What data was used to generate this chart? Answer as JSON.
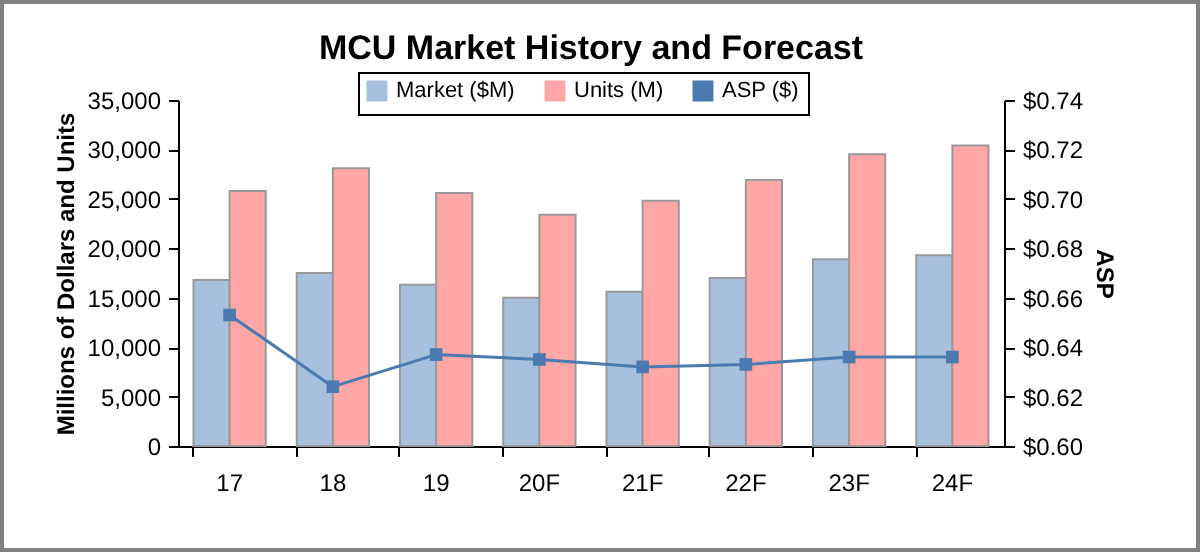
{
  "chart_data": {
    "type": "bar",
    "title": "MCU Market History and Forecast",
    "ylabel": "Millions of Dollars and Units",
    "y2label": "ASP",
    "categories": [
      "17",
      "18",
      "19",
      "20F",
      "21F",
      "22F",
      "23F",
      "24F"
    ],
    "series": [
      {
        "name": "Market ($M)",
        "color": "#a7c0de",
        "values": [
          16800,
          17500,
          16300,
          15000,
          15600,
          17000,
          18900,
          19300
        ]
      },
      {
        "name": "Units (M)",
        "color": "#ffa6a6",
        "values": [
          25800,
          28100,
          25600,
          23400,
          24800,
          26900,
          29500,
          30400
        ]
      },
      {
        "name": "ASP ($)",
        "type": "line",
        "axis": "y2",
        "color": "#4a7ab0",
        "values": [
          0.653,
          0.624,
          0.637,
          0.635,
          0.632,
          0.633,
          0.636,
          0.636
        ]
      }
    ],
    "ylim": [
      0,
      35000
    ],
    "yticks": [
      0,
      {
        "value": 5000,
        "label": "5,000"
      },
      {
        "value": 10000,
        "label": "10,000"
      },
      {
        "value": 15000,
        "label": "15,000"
      },
      {
        "value": 20000,
        "label": "20,000"
      },
      {
        "value": 25000,
        "label": "25,000"
      },
      {
        "value": 30000,
        "label": "30,000"
      },
      {
        "value": 35000,
        "label": "35,000"
      }
    ],
    "y2lim": [
      0.6,
      0.74
    ],
    "y2ticks": [
      {
        "value": 0.6,
        "label": "$0.60"
      },
      {
        "value": 0.62,
        "label": "$0.62"
      },
      {
        "value": 0.64,
        "label": "$0.64"
      },
      {
        "value": 0.66,
        "label": "$0.66"
      },
      {
        "value": 0.68,
        "label": "$0.68"
      },
      {
        "value": 0.7,
        "label": "$0.70"
      },
      {
        "value": 0.72,
        "label": "$0.72"
      },
      {
        "value": 0.74,
        "label": "$0.74"
      }
    ],
    "legend": "top",
    "marker": "square"
  }
}
